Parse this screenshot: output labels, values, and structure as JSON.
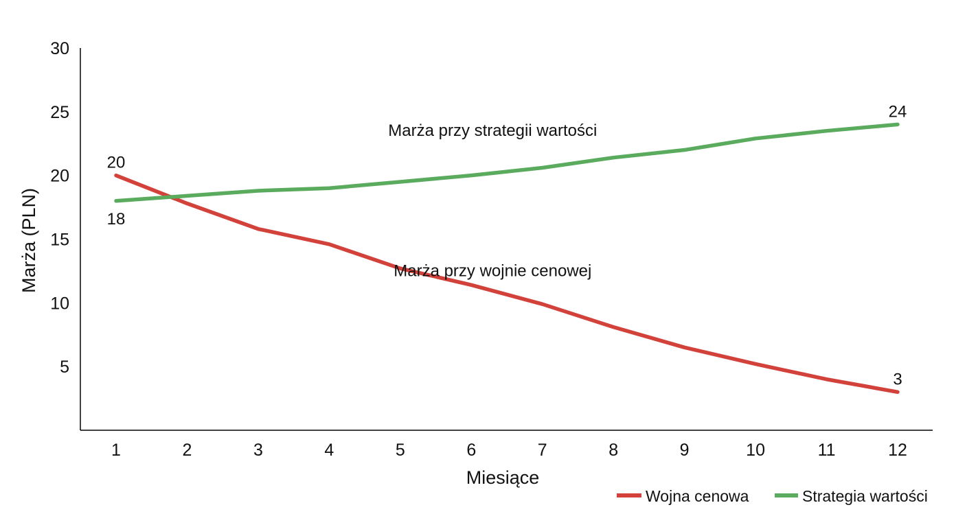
{
  "chart_data": {
    "type": "line",
    "title": "",
    "xlabel": "Miesiące",
    "ylabel": "Marża (PLN)",
    "x": [
      1,
      2,
      3,
      4,
      5,
      6,
      7,
      8,
      9,
      10,
      11,
      12
    ],
    "x_tick_labels": [
      "1",
      "2",
      "3",
      "4",
      "5",
      "6",
      "7",
      "8",
      "9",
      "10",
      "11",
      "12"
    ],
    "y_ticks": [
      5,
      10,
      15,
      20,
      25,
      30
    ],
    "y_tick_labels": [
      "5",
      "10",
      "15",
      "20",
      "25",
      "30"
    ],
    "ylim": [
      0,
      30
    ],
    "xlim": [
      0.5,
      12.5
    ],
    "grid": false,
    "legend_position": "bottom-right",
    "series": [
      {
        "name": "Wojna cenowa",
        "color": "#d2413a",
        "values": [
          20.0,
          17.8,
          15.8,
          14.6,
          12.7,
          11.4,
          9.9,
          8.1,
          6.5,
          5.2,
          4.0,
          3.0
        ]
      },
      {
        "name": "Strategia wartości",
        "color": "#5aab5e",
        "values": [
          18.0,
          18.4,
          18.8,
          19.0,
          19.5,
          20.0,
          20.6,
          21.4,
          22.0,
          22.9,
          23.5,
          24.0
        ]
      }
    ],
    "data_labels": [
      {
        "series": 0,
        "index": 0,
        "text": "20",
        "place": "above"
      },
      {
        "series": 0,
        "index": 11,
        "text": "3",
        "place": "above"
      },
      {
        "series": 1,
        "index": 0,
        "text": "18",
        "place": "below"
      },
      {
        "series": 1,
        "index": 11,
        "text": "24",
        "place": "above"
      }
    ],
    "annotations": [
      {
        "text": "Marża przy strategii wartości",
        "x": 6.3,
        "y": 23.1
      },
      {
        "text": "Marża przy wojnie cenowej",
        "x": 6.3,
        "y": 12.1
      }
    ]
  }
}
